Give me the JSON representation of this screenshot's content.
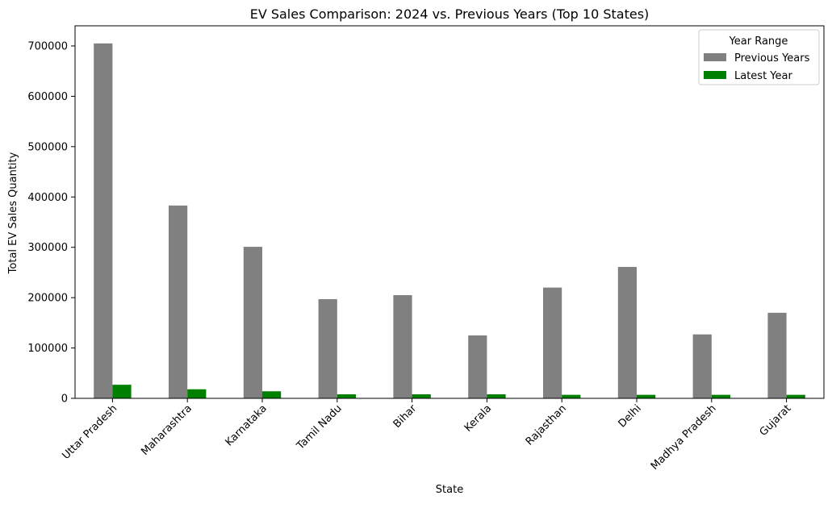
{
  "chart_data": {
    "type": "bar",
    "title": "EV Sales Comparison: 2024 vs. Previous Years (Top 10 States)",
    "xlabel": "State",
    "ylabel": "Total EV Sales Quantity",
    "categories": [
      "Uttar Pradesh",
      "Maharashtra",
      "Karnataka",
      "Tamil Nadu",
      "Bihar",
      "Kerala",
      "Rajasthan",
      "Delhi",
      "Madhya Pradesh",
      "Gujarat"
    ],
    "series": [
      {
        "name": "Previous Years",
        "color": "#808080",
        "values": [
          705000,
          383000,
          301000,
          197000,
          205000,
          125000,
          220000,
          261000,
          127000,
          170000
        ]
      },
      {
        "name": "Latest Year",
        "color": "#008000",
        "values": [
          27000,
          18000,
          14000,
          8000,
          8000,
          8000,
          7000,
          7000,
          7000,
          7000
        ]
      }
    ],
    "ylim": [
      0,
      740000
    ],
    "yticks": [
      "0",
      "100000",
      "200000",
      "300000",
      "400000",
      "500000",
      "600000",
      "700000"
    ],
    "legend": {
      "title": "Year Range",
      "placement": "top-right"
    },
    "grid": false
  }
}
